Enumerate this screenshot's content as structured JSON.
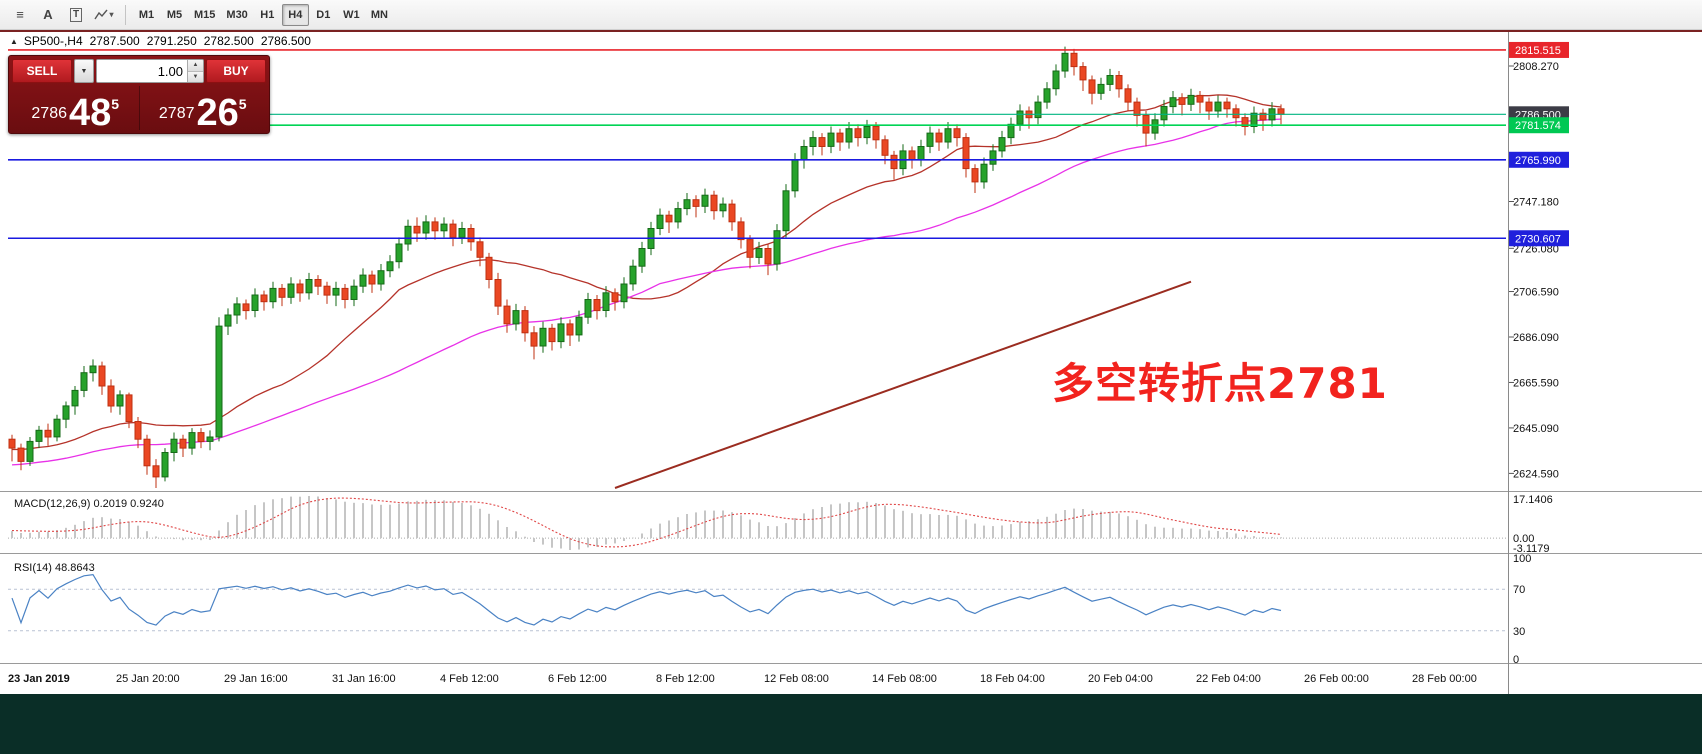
{
  "toolbar": {
    "icons": [
      {
        "name": "chart-list-icon",
        "glyph": "≡"
      },
      {
        "name": "font-tool-icon",
        "glyph": "A"
      },
      {
        "name": "text-tool-icon",
        "glyph": "T"
      },
      {
        "name": "draw-tools-icon",
        "glyph": "▾"
      }
    ],
    "timeframes": {
      "items": [
        "M1",
        "M5",
        "M15",
        "M30",
        "H1",
        "H4",
        "D1",
        "W1",
        "MN"
      ],
      "active": "H4"
    }
  },
  "chart_header": {
    "collapse_glyph": "▲",
    "symbol_period": "SP500-,H4",
    "open": "2787.500",
    "high": "2791.250",
    "low": "2782.500",
    "close": "2786.500"
  },
  "trade_panel": {
    "sell_label": "SELL",
    "buy_label": "BUY",
    "lot": "1.00",
    "dropdown_glyph": "▼",
    "spin_up": "▲",
    "spin_down": "▼",
    "bid": {
      "main": "2786",
      "big": "48",
      "sup": "5"
    },
    "ask": {
      "main": "2787",
      "big": "26",
      "sup": "5"
    }
  },
  "annotation": {
    "text": "多空转折点2781",
    "color": "#f2231e"
  },
  "price_axis": {
    "ticks": [
      {
        "label": "2808.270",
        "price": 2808.27
      },
      {
        "label": "2747.180",
        "price": 2747.18
      },
      {
        "label": "2726.080",
        "price": 2726.08
      },
      {
        "label": "2706.590",
        "price": 2706.59
      },
      {
        "label": "2686.090",
        "price": 2686.09
      },
      {
        "label": "2665.590",
        "price": 2665.59
      },
      {
        "label": "2645.090",
        "price": 2645.09
      },
      {
        "label": "2624.590",
        "price": 2624.59
      }
    ],
    "badges": [
      {
        "label": "2815.515",
        "price": 2815.515,
        "bg": "#e8252b",
        "fg": "#ffffff"
      },
      {
        "label": "2786.500",
        "price": 2786.5,
        "bg": "#3c3c46",
        "fg": "#ffffff"
      },
      {
        "label": "2781.574",
        "price": 2781.574,
        "bg": "#00c853",
        "fg": "#ffffff"
      },
      {
        "label": "2765.990",
        "price": 2765.99,
        "bg": "#2020dc",
        "fg": "#ffffff"
      },
      {
        "label": "2730.607",
        "price": 2730.607,
        "bg": "#2020dc",
        "fg": "#ffffff"
      }
    ]
  },
  "hlines": [
    {
      "price": 2815.515,
      "color": "#e8252b",
      "width": 1.6
    },
    {
      "price": 2786.5,
      "color": "#00b481",
      "width": 1.2
    },
    {
      "price": 2781.574,
      "color": "#00d455",
      "width": 1.6
    },
    {
      "price": 2765.99,
      "color": "#1a1ae0",
      "width": 1.6
    },
    {
      "price": 2730.607,
      "color": "#1a1ae0",
      "width": 1.6
    }
  ],
  "trendline": {
    "i1": 67,
    "p1": 2618,
    "i2": 131,
    "p2": 2711,
    "color": "#9b2c20",
    "width": 2
  },
  "indicators": {
    "macd": {
      "label": "MACD(12,26,9) 0.2019 0.9240",
      "axis": [
        "17.1406",
        "0.00",
        "-3.1179"
      ],
      "histogram_color": "#c6c6c6",
      "signal_color": "#e04848"
    },
    "rsi": {
      "label": "RSI(14) 48.8643",
      "axis": [
        100,
        70,
        30,
        0
      ],
      "levels": [
        70,
        30
      ],
      "color": "#4a82c4"
    }
  },
  "chart_data": {
    "type": "candlestick",
    "symbol": "SP500-",
    "period": "H4",
    "title": "SP500-,H4 2787.500 2791.250 2782.500 2786.500",
    "price_range": [
      2618,
      2820
    ],
    "grid": false,
    "up": {
      "fill": "#27a22b",
      "stroke": "#156a17"
    },
    "down": {
      "fill": "#ea4723",
      "stroke": "#bf3012"
    },
    "moving_averages": [
      {
        "type": "sma",
        "period": 21,
        "color": "#b5332a",
        "width": 1.3
      },
      {
        "type": "sma",
        "period": 50,
        "color": "#e832e8",
        "width": 1.3
      }
    ],
    "seed": {
      "count": 50,
      "start": 2616,
      "end": 2640
    },
    "time_labels": [
      "23 Jan 2019",
      "25 Jan 20:00",
      "29 Jan 16:00",
      "31 Jan 16:00",
      "4 Feb 12:00",
      "6 Feb 12:00",
      "8 Feb 12:00",
      "12 Feb 08:00",
      "14 Feb 08:00",
      "18 Feb 04:00",
      "20 Feb 04:00",
      "22 Feb 04:00",
      "26 Feb 00:00",
      "28 Feb 00:00"
    ],
    "ohlc": [
      [
        2640,
        2642,
        2630,
        2636
      ],
      [
        2636,
        2638,
        2626,
        2630
      ],
      [
        2630,
        2641,
        2628,
        2639
      ],
      [
        2639,
        2646,
        2636,
        2644
      ],
      [
        2644,
        2647,
        2637,
        2641
      ],
      [
        2641,
        2651,
        2639,
        2649
      ],
      [
        2649,
        2657,
        2645,
        2655
      ],
      [
        2655,
        2664,
        2651,
        2662
      ],
      [
        2662,
        2673,
        2659,
        2670
      ],
      [
        2670,
        2676,
        2666,
        2673
      ],
      [
        2673,
        2675,
        2660,
        2664
      ],
      [
        2664,
        2667,
        2652,
        2655
      ],
      [
        2655,
        2662,
        2651,
        2660
      ],
      [
        2660,
        2661,
        2645,
        2648
      ],
      [
        2648,
        2650,
        2636,
        2640
      ],
      [
        2640,
        2642,
        2624,
        2628
      ],
      [
        2628,
        2631,
        2618,
        2623
      ],
      [
        2623,
        2636,
        2621,
        2634
      ],
      [
        2634,
        2643,
        2630,
        2640
      ],
      [
        2640,
        2642,
        2632,
        2636
      ],
      [
        2636,
        2645,
        2633,
        2643
      ],
      [
        2643,
        2645,
        2636,
        2639
      ],
      [
        2639,
        2644,
        2635,
        2641
      ],
      [
        2641,
        2695,
        2639,
        2691
      ],
      [
        2691,
        2699,
        2687,
        2696
      ],
      [
        2696,
        2704,
        2692,
        2701
      ],
      [
        2701,
        2703,
        2694,
        2698
      ],
      [
        2698,
        2708,
        2695,
        2705
      ],
      [
        2705,
        2707,
        2698,
        2702
      ],
      [
        2702,
        2711,
        2699,
        2708
      ],
      [
        2708,
        2710,
        2700,
        2704
      ],
      [
        2704,
        2713,
        2701,
        2710
      ],
      [
        2710,
        2712,
        2702,
        2706
      ],
      [
        2706,
        2715,
        2703,
        2712
      ],
      [
        2712,
        2714,
        2705,
        2709
      ],
      [
        2709,
        2711,
        2701,
        2705
      ],
      [
        2705,
        2711,
        2700,
        2708
      ],
      [
        2708,
        2710,
        2699,
        2703
      ],
      [
        2703,
        2712,
        2700,
        2709
      ],
      [
        2709,
        2717,
        2706,
        2714
      ],
      [
        2714,
        2716,
        2706,
        2710
      ],
      [
        2710,
        2719,
        2707,
        2716
      ],
      [
        2716,
        2723,
        2713,
        2720
      ],
      [
        2720,
        2731,
        2717,
        2728
      ],
      [
        2728,
        2739,
        2725,
        2736
      ],
      [
        2736,
        2740,
        2729,
        2733
      ],
      [
        2733,
        2741,
        2730,
        2738
      ],
      [
        2738,
        2740,
        2730,
        2734
      ],
      [
        2734,
        2740,
        2731,
        2737
      ],
      [
        2737,
        2739,
        2727,
        2731
      ],
      [
        2731,
        2738,
        2728,
        2735
      ],
      [
        2735,
        2737,
        2725,
        2729
      ],
      [
        2729,
        2731,
        2718,
        2722
      ],
      [
        2722,
        2724,
        2708,
        2712
      ],
      [
        2712,
        2715,
        2696,
        2700
      ],
      [
        2700,
        2703,
        2688,
        2692
      ],
      [
        2692,
        2701,
        2689,
        2698
      ],
      [
        2698,
        2700,
        2684,
        2688
      ],
      [
        2688,
        2691,
        2676,
        2682
      ],
      [
        2682,
        2693,
        2679,
        2690
      ],
      [
        2690,
        2692,
        2680,
        2684
      ],
      [
        2684,
        2695,
        2681,
        2692
      ],
      [
        2692,
        2694,
        2682,
        2687
      ],
      [
        2687,
        2698,
        2684,
        2695
      ],
      [
        2695,
        2706,
        2692,
        2703
      ],
      [
        2703,
        2705,
        2694,
        2698
      ],
      [
        2698,
        2709,
        2695,
        2706
      ],
      [
        2706,
        2708,
        2698,
        2702
      ],
      [
        2702,
        2713,
        2699,
        2710
      ],
      [
        2710,
        2721,
        2707,
        2718
      ],
      [
        2718,
        2729,
        2715,
        2726
      ],
      [
        2726,
        2738,
        2723,
        2735
      ],
      [
        2735,
        2744,
        2732,
        2741
      ],
      [
        2741,
        2743,
        2733,
        2738
      ],
      [
        2738,
        2747,
        2735,
        2744
      ],
      [
        2744,
        2751,
        2741,
        2748
      ],
      [
        2748,
        2750,
        2740,
        2745
      ],
      [
        2745,
        2753,
        2742,
        2750
      ],
      [
        2750,
        2752,
        2739,
        2743
      ],
      [
        2743,
        2749,
        2740,
        2746
      ],
      [
        2746,
        2748,
        2734,
        2738
      ],
      [
        2738,
        2740,
        2726,
        2730
      ],
      [
        2730,
        2732,
        2717,
        2722
      ],
      [
        2722,
        2729,
        2719,
        2726
      ],
      [
        2726,
        2728,
        2714,
        2719
      ],
      [
        2719,
        2737,
        2716,
        2734
      ],
      [
        2734,
        2755,
        2731,
        2752
      ],
      [
        2752,
        2769,
        2749,
        2766
      ],
      [
        2766,
        2775,
        2762,
        2772
      ],
      [
        2772,
        2779,
        2768,
        2776
      ],
      [
        2776,
        2778,
        2768,
        2772
      ],
      [
        2772,
        2781,
        2769,
        2778
      ],
      [
        2778,
        2780,
        2770,
        2774
      ],
      [
        2774,
        2783,
        2771,
        2780
      ],
      [
        2780,
        2782,
        2772,
        2776
      ],
      [
        2776,
        2784,
        2773,
        2781
      ],
      [
        2781,
        2783,
        2771,
        2775
      ],
      [
        2775,
        2777,
        2764,
        2768
      ],
      [
        2768,
        2770,
        2757,
        2762
      ],
      [
        2762,
        2773,
        2759,
        2770
      ],
      [
        2770,
        2772,
        2762,
        2766
      ],
      [
        2766,
        2775,
        2763,
        2772
      ],
      [
        2772,
        2781,
        2769,
        2778
      ],
      [
        2778,
        2780,
        2770,
        2774
      ],
      [
        2774,
        2783,
        2771,
        2780
      ],
      [
        2780,
        2782,
        2772,
        2776
      ],
      [
        2776,
        2778,
        2758,
        2762
      ],
      [
        2762,
        2764,
        2751,
        2756
      ],
      [
        2756,
        2767,
        2753,
        2764
      ],
      [
        2764,
        2773,
        2761,
        2770
      ],
      [
        2770,
        2779,
        2767,
        2776
      ],
      [
        2776,
        2785,
        2773,
        2782
      ],
      [
        2782,
        2791,
        2779,
        2788
      ],
      [
        2788,
        2790,
        2780,
        2785
      ],
      [
        2785,
        2795,
        2782,
        2792
      ],
      [
        2792,
        2801,
        2789,
        2798
      ],
      [
        2798,
        2809,
        2795,
        2806
      ],
      [
        2806,
        2817,
        2803,
        2814
      ],
      [
        2814,
        2816,
        2804,
        2808
      ],
      [
        2808,
        2810,
        2797,
        2802
      ],
      [
        2802,
        2804,
        2791,
        2796
      ],
      [
        2796,
        2803,
        2793,
        2800
      ],
      [
        2800,
        2807,
        2797,
        2804
      ],
      [
        2804,
        2806,
        2794,
        2798
      ],
      [
        2798,
        2800,
        2788,
        2792
      ],
      [
        2792,
        2794,
        2781,
        2786
      ],
      [
        2786,
        2788,
        2772,
        2778
      ],
      [
        2778,
        2787,
        2775,
        2784
      ],
      [
        2784,
        2793,
        2781,
        2790
      ],
      [
        2790,
        2797,
        2787,
        2794
      ],
      [
        2794,
        2796,
        2786,
        2791
      ],
      [
        2791,
        2798,
        2788,
        2795
      ],
      [
        2795,
        2797,
        2787,
        2792
      ],
      [
        2792,
        2794,
        2784,
        2788
      ],
      [
        2788,
        2795,
        2785,
        2792
      ],
      [
        2792,
        2794,
        2785,
        2789
      ],
      [
        2789,
        2791,
        2781,
        2785
      ],
      [
        2785,
        2787,
        2777,
        2781
      ],
      [
        2781,
        2790,
        2778,
        2787
      ],
      [
        2787,
        2789,
        2779,
        2784
      ],
      [
        2784,
        2792,
        2781,
        2789
      ],
      [
        2789,
        2791,
        2782,
        2786.5
      ]
    ]
  }
}
